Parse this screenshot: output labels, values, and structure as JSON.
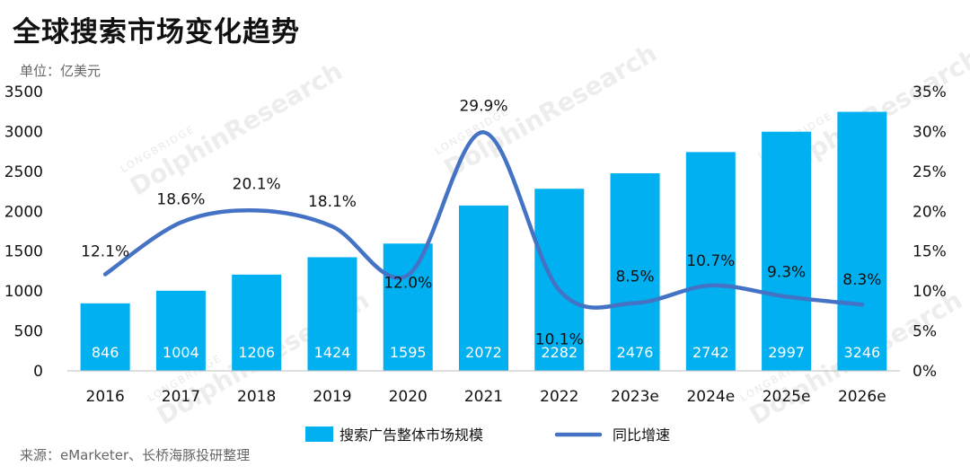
{
  "header": {
    "title": "全球搜索市场变化趋势",
    "unit": "单位：亿美元"
  },
  "footer": {
    "source": "来源：eMarketer、长桥海豚投研整理"
  },
  "watermark": {
    "brand": "LONGBRIDGE",
    "text": "DolphinResearch"
  },
  "chart_data": {
    "type": "bar",
    "categories": [
      "2016",
      "2017",
      "2018",
      "2019",
      "2020",
      "2021",
      "2022",
      "2023e",
      "2024e",
      "2025e",
      "2026e"
    ],
    "series": [
      {
        "name": "搜索广告整体市场规模",
        "type": "bar",
        "axis": "left",
        "color": "#00b0f0",
        "values": [
          846,
          1004,
          1206,
          1424,
          1595,
          2072,
          2282,
          2476,
          2742,
          2997,
          3246
        ],
        "labels": [
          "846",
          "1004",
          "1206",
          "1424",
          "1595",
          "2072",
          "2282",
          "2476",
          "2742",
          "2997",
          "3246"
        ]
      },
      {
        "name": "同比增速",
        "type": "line",
        "axis": "right",
        "color": "#4472c4",
        "values": [
          12.1,
          18.6,
          20.1,
          18.1,
          12.0,
          29.9,
          10.1,
          8.5,
          10.7,
          9.3,
          8.3
        ],
        "labels": [
          "12.1%",
          "18.6%",
          "20.1%",
          "18.1%",
          "12.0%",
          "29.9%",
          "10.1%",
          "8.5%",
          "10.7%",
          "9.3%",
          "8.3%"
        ]
      }
    ],
    "y_left": {
      "range": [
        0,
        3500
      ],
      "ticks": [
        "0",
        "500",
        "1000",
        "1500",
        "2000",
        "2500",
        "3000",
        "3500"
      ]
    },
    "y_right": {
      "range": [
        0,
        35
      ],
      "ticks": [
        "0%",
        "5%",
        "10%",
        "15%",
        "20%",
        "25%",
        "30%",
        "35%"
      ]
    },
    "grid": false,
    "legend_position": "bottom"
  }
}
